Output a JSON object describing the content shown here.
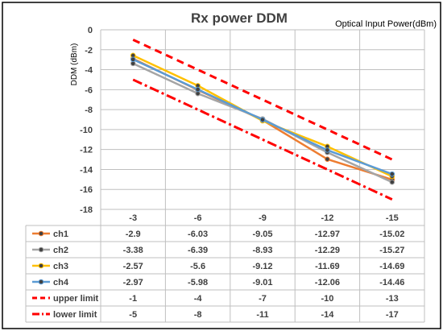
{
  "chart_data": {
    "type": "line",
    "title": "Rx  power DDM",
    "xlabel": "Optical Input Power(dBm)",
    "ylabel": "DDM (dBm)",
    "ylim": [
      -18,
      0
    ],
    "yticks": [
      0,
      -2,
      -4,
      -6,
      -8,
      -10,
      -12,
      -14,
      -16,
      -18
    ],
    "categories": [
      "-3",
      "-6",
      "-9",
      "-12",
      "-15"
    ],
    "grid": true,
    "legend": "data table below plot",
    "series": [
      {
        "name": "ch1",
        "color": "#ED7D31",
        "dash": "solid",
        "marker": true,
        "values": [
          -2.9,
          -6.03,
          -9.05,
          -12.97,
          -15.02
        ]
      },
      {
        "name": "ch2",
        "color": "#A5A5A5",
        "dash": "solid",
        "marker": true,
        "values": [
          -3.38,
          -6.39,
          -8.93,
          -12.29,
          -15.27
        ]
      },
      {
        "name": "ch3",
        "color": "#FFC000",
        "dash": "solid",
        "marker": true,
        "values": [
          -2.57,
          -5.6,
          -9.12,
          -11.69,
          -14.69
        ]
      },
      {
        "name": "ch4",
        "color": "#5B9BD5",
        "dash": "solid",
        "marker": true,
        "values": [
          -2.97,
          -5.98,
          -9.01,
          -12.06,
          -14.46
        ]
      },
      {
        "name": "upper limit",
        "color": "#FF0000",
        "dash": "dashed",
        "marker": false,
        "values": [
          -1,
          -4,
          -7,
          -10,
          -13
        ]
      },
      {
        "name": "lower limit",
        "color": "#FF0000",
        "dash": "dashdot",
        "marker": false,
        "values": [
          -5,
          -8,
          -11,
          -14,
          -17
        ]
      }
    ],
    "table_values": [
      [
        "-2.9",
        "-6.03",
        "-9.05",
        "-12.97",
        "-15.02"
      ],
      [
        "-3.38",
        "-6.39",
        "-8.93",
        "-12.29",
        "-15.27"
      ],
      [
        "-2.57",
        "-5.6",
        "-9.12",
        "-11.69",
        "-14.69"
      ],
      [
        "-2.97",
        "-5.98",
        "-9.01",
        "-12.06",
        "-14.46"
      ],
      [
        "-1",
        "-4",
        "-7",
        "-10",
        "-13"
      ],
      [
        "-5",
        "-8",
        "-11",
        "-14",
        "-17"
      ]
    ]
  }
}
